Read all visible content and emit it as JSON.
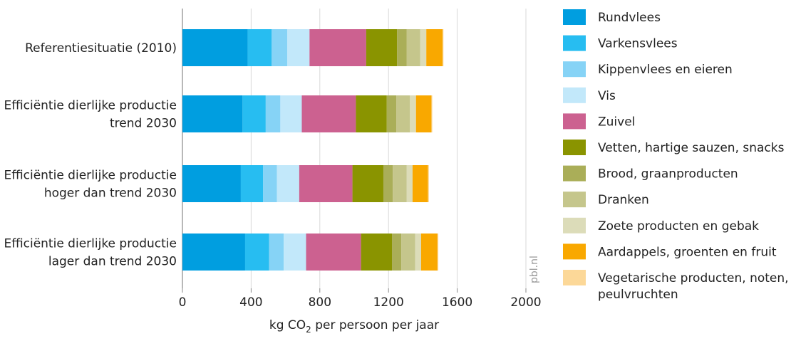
{
  "chart_data": {
    "type": "bar",
    "orientation": "horizontal",
    "stacked": true,
    "categories": [
      [
        "Referentiesituatie (2010)"
      ],
      [
        "Efficiëntie dierlijke productie",
        "trend 2030"
      ],
      [
        "Efficiëntie dierlijke productie",
        "hoger dan trend 2030"
      ],
      [
        "Efficiëntie dierlijke productie",
        "lager dan trend 2030"
      ]
    ],
    "series": [
      {
        "name": "Rundvlees",
        "color": "#009ee0",
        "values": [
          380,
          350,
          340,
          365
        ]
      },
      {
        "name": "Varkensvlees",
        "color": "#27bdf1",
        "values": [
          140,
          135,
          130,
          140
        ]
      },
      {
        "name": "Kippenvlees en eieren",
        "color": "#86d3f6",
        "values": [
          90,
          85,
          80,
          85
        ]
      },
      {
        "name": "Vis",
        "color": "#c2e8fa",
        "values": [
          130,
          125,
          130,
          130
        ]
      },
      {
        "name": "Zuivel",
        "color": "#cc6190",
        "values": [
          330,
          315,
          310,
          320
        ]
      },
      {
        "name": "Vetten, hartige sauzen, snacks",
        "color": "#8a9400",
        "values": [
          180,
          180,
          180,
          180
        ]
      },
      {
        "name": "Brood, graanproducten",
        "color": "#aaae58",
        "values": [
          55,
          55,
          55,
          55
        ]
      },
      {
        "name": "Dranken",
        "color": "#c5c68c",
        "values": [
          80,
          80,
          80,
          80
        ]
      },
      {
        "name": "Zoete producten en gebak",
        "color": "#dcdcb9",
        "values": [
          35,
          35,
          35,
          35
        ]
      },
      {
        "name": "Aardappels, groenten en fruit",
        "color": "#f9a800",
        "values": [
          95,
          90,
          90,
          95
        ]
      },
      {
        "name": "Vegetarische producten, noten, peulvruchten",
        "color": "#fcd898",
        "values": [
          5,
          5,
          5,
          5
        ]
      }
    ],
    "xlabel": {
      "prefix": "kg CO",
      "sub": "2",
      "suffix": " per persoon per jaar"
    },
    "xlim": [
      0,
      2000
    ],
    "xticks": [
      0,
      400,
      800,
      1200,
      1600,
      2000
    ],
    "grid": true,
    "legend_position": "right",
    "watermark": "pbl.nl"
  }
}
